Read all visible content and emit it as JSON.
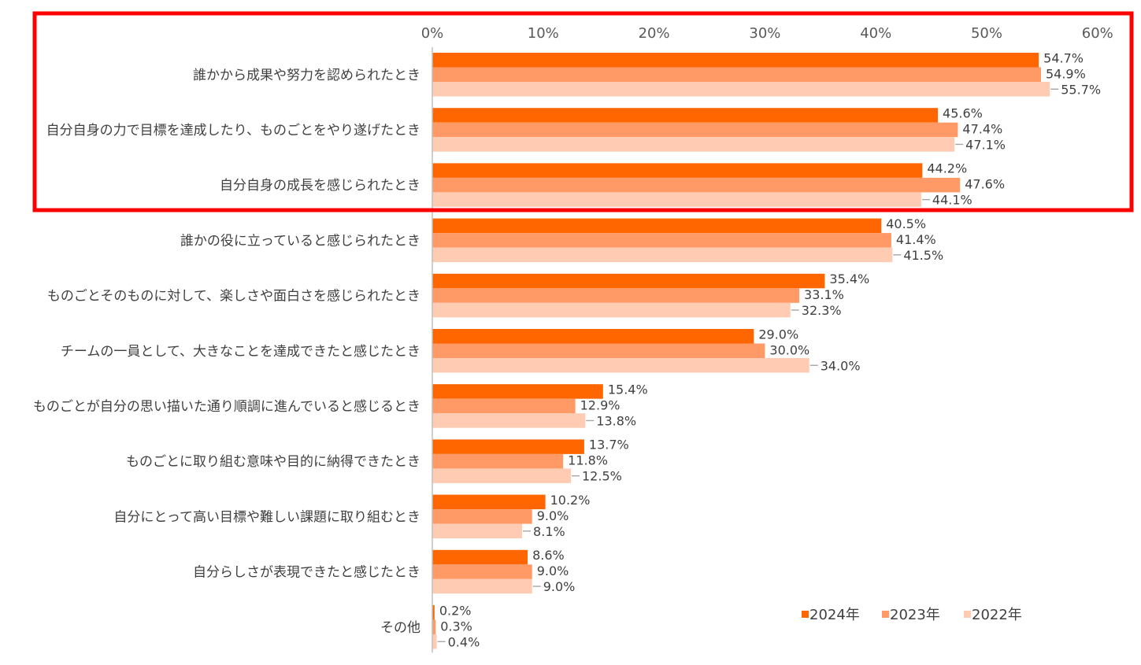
{
  "chart_data": {
    "type": "bar",
    "orientation": "horizontal",
    "xlim": [
      0,
      60
    ],
    "x_ticks": [
      "0%",
      "10%",
      "20%",
      "30%",
      "40%",
      "50%",
      "60%"
    ],
    "categories": [
      "誰かから成果や努力を認められたとき",
      "自分自身の力で目標を達成したり、ものごとをやり遂げたとき",
      "自分自身の成長を感じられたとき",
      "誰かの役に立っていると感じられたとき",
      "ものごとそのものに対して、楽しさや面白さを感じられたとき",
      "チームの一員として、大きなことを達成できたと感じたとき",
      "ものごとが自分の思い描いた通り順調に進んでいると感じるとき",
      "ものごとに取り組む意味や目的に納得できたとき",
      "自分にとって高い目標や難しい課題に取り組むとき",
      "自分らしさが表現できたと感じたとき",
      "その他"
    ],
    "series": [
      {
        "name": "2024年",
        "color": "#FF6600",
        "values": [
          54.7,
          45.6,
          44.2,
          40.5,
          35.4,
          29.0,
          15.4,
          13.7,
          10.2,
          8.6,
          0.2
        ],
        "labels": [
          "54.7%",
          "45.6%",
          "44.2%",
          "40.5%",
          "35.4%",
          "29.0%",
          "15.4%",
          "13.7%",
          "10.2%",
          "8.6%",
          "0.2%"
        ]
      },
      {
        "name": "2023年",
        "color": "#FF9966",
        "values": [
          54.9,
          47.4,
          47.6,
          41.4,
          33.1,
          30.0,
          12.9,
          11.8,
          9.0,
          9.0,
          0.3
        ],
        "labels": [
          "54.9%",
          "47.4%",
          "47.6%",
          "41.4%",
          "33.1%",
          "30.0%",
          "12.9%",
          "11.8%",
          "9.0%",
          "9.0%",
          "0.3%"
        ]
      },
      {
        "name": "2022年",
        "color": "#FFCCB3",
        "values": [
          55.7,
          47.1,
          44.1,
          41.5,
          32.3,
          34.0,
          13.8,
          12.5,
          8.1,
          9.0,
          0.4
        ],
        "labels": [
          "55.7%",
          "47.1%",
          "44.1%",
          "41.5%",
          "32.3%",
          "34.0%",
          "13.8%",
          "12.5%",
          "8.1%",
          "9.0%",
          "0.4%"
        ]
      }
    ],
    "legend_position": "bottom-right",
    "highlight": {
      "categories": [
        0,
        1,
        2
      ],
      "color": "#FF0000"
    }
  }
}
